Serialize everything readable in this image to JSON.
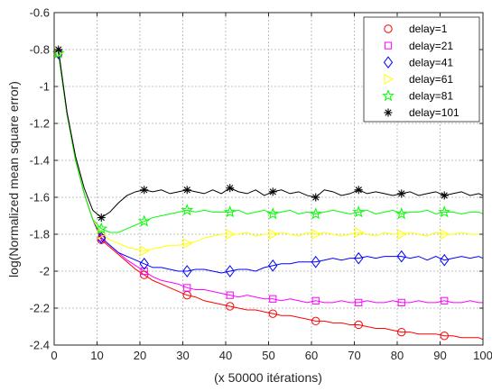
{
  "chart_data": {
    "type": "line",
    "title": "",
    "xlabel": "(x 50000 itérations)",
    "ylabel": "log(Normalized mean square error)",
    "xlim": [
      0,
      100
    ],
    "ylim": [
      -2.4,
      -0.6
    ],
    "xticks": [
      0,
      10,
      20,
      30,
      40,
      50,
      60,
      70,
      80,
      90,
      100
    ],
    "xtick_labels": [
      "0",
      "10",
      "20",
      "30",
      "40",
      "50",
      "60",
      "70",
      "80",
      "90",
      "100"
    ],
    "yticks": [
      -0.6,
      -0.8,
      -1,
      -1.2,
      -1.4,
      -1.6,
      -1.8,
      -2,
      -2.2,
      -2.4
    ],
    "ytick_labels": [
      "-0.6",
      "-0.8",
      "-1",
      "-1.2",
      "-1.4",
      "-1.6",
      "-1.8",
      "-2",
      "-2.2",
      "-2.4"
    ],
    "grid": true,
    "legend_position": "top-right",
    "series": [
      {
        "name": "delay=1",
        "color": "#ff0000",
        "marker": "circle",
        "x": [
          1,
          3,
          5,
          7,
          9,
          11,
          13,
          15,
          17,
          19,
          21,
          23,
          25,
          27,
          29,
          31,
          33,
          35,
          37,
          39,
          41,
          43,
          45,
          47,
          49,
          51,
          53,
          55,
          57,
          59,
          61,
          63,
          65,
          67,
          69,
          71,
          73,
          75,
          77,
          79,
          81,
          83,
          85,
          87,
          89,
          91,
          93,
          95,
          97,
          99,
          100
        ],
        "values": [
          -0.82,
          -1.15,
          -1.4,
          -1.58,
          -1.72,
          -1.83,
          -1.87,
          -1.91,
          -1.95,
          -1.99,
          -2.02,
          -2.05,
          -2.07,
          -2.09,
          -2.11,
          -2.13,
          -2.14,
          -2.16,
          -2.17,
          -2.18,
          -2.19,
          -2.2,
          -2.21,
          -2.21,
          -2.22,
          -2.23,
          -2.24,
          -2.24,
          -2.25,
          -2.26,
          -2.27,
          -2.27,
          -2.28,
          -2.28,
          -2.29,
          -2.29,
          -2.3,
          -2.31,
          -2.31,
          -2.32,
          -2.33,
          -2.33,
          -2.34,
          -2.34,
          -2.34,
          -2.35,
          -2.35,
          -2.36,
          -2.36,
          -2.36,
          -2.37
        ]
      },
      {
        "name": "delay=21",
        "color": "#ff00ff",
        "marker": "square",
        "x": [
          1,
          3,
          5,
          7,
          9,
          11,
          13,
          15,
          17,
          19,
          21,
          23,
          25,
          27,
          29,
          31,
          33,
          35,
          37,
          39,
          41,
          43,
          45,
          47,
          49,
          51,
          53,
          55,
          57,
          59,
          61,
          63,
          65,
          67,
          69,
          71,
          73,
          75,
          77,
          79,
          81,
          83,
          85,
          87,
          89,
          91,
          93,
          95,
          97,
          99,
          100
        ],
        "values": [
          -0.82,
          -1.15,
          -1.4,
          -1.58,
          -1.72,
          -1.82,
          -1.86,
          -1.9,
          -1.94,
          -1.97,
          -2.0,
          -2.03,
          -2.05,
          -2.06,
          -2.07,
          -2.09,
          -2.1,
          -2.1,
          -2.11,
          -2.12,
          -2.13,
          -2.14,
          -2.13,
          -2.14,
          -2.15,
          -2.15,
          -2.16,
          -2.15,
          -2.16,
          -2.17,
          -2.16,
          -2.17,
          -2.17,
          -2.16,
          -2.17,
          -2.17,
          -2.16,
          -2.17,
          -2.17,
          -2.16,
          -2.17,
          -2.17,
          -2.16,
          -2.17,
          -2.17,
          -2.16,
          -2.17,
          -2.17,
          -2.16,
          -2.17,
          -2.17
        ]
      },
      {
        "name": "delay=41",
        "color": "#0000ff",
        "marker": "diamond",
        "x": [
          1,
          3,
          5,
          7,
          9,
          11,
          13,
          15,
          17,
          19,
          21,
          23,
          25,
          27,
          29,
          31,
          33,
          35,
          37,
          39,
          41,
          43,
          45,
          47,
          49,
          51,
          53,
          55,
          57,
          59,
          61,
          63,
          65,
          67,
          69,
          71,
          73,
          75,
          77,
          79,
          81,
          83,
          85,
          87,
          89,
          91,
          93,
          95,
          97,
          99,
          100
        ],
        "values": [
          -0.82,
          -1.15,
          -1.4,
          -1.58,
          -1.72,
          -1.82,
          -1.86,
          -1.9,
          -1.92,
          -1.94,
          -1.96,
          -1.98,
          -1.98,
          -1.99,
          -2.0,
          -2.0,
          -1.99,
          -1.99,
          -2.0,
          -2.01,
          -2.0,
          -1.99,
          -1.99,
          -2.0,
          -1.98,
          -1.97,
          -1.96,
          -1.96,
          -1.95,
          -1.95,
          -1.95,
          -1.94,
          -1.93,
          -1.94,
          -1.93,
          -1.93,
          -1.92,
          -1.93,
          -1.92,
          -1.92,
          -1.92,
          -1.93,
          -1.92,
          -1.94,
          -1.92,
          -1.94,
          -1.93,
          -1.92,
          -1.93,
          -1.92,
          -1.93
        ]
      },
      {
        "name": "delay=61",
        "color": "#ffff00",
        "marker": "triangle-right",
        "x": [
          1,
          3,
          5,
          7,
          9,
          11,
          13,
          15,
          17,
          19,
          21,
          23,
          25,
          27,
          29,
          31,
          33,
          35,
          37,
          39,
          41,
          43,
          45,
          47,
          49,
          51,
          53,
          55,
          57,
          59,
          61,
          63,
          65,
          67,
          69,
          71,
          73,
          75,
          77,
          79,
          81,
          83,
          85,
          87,
          89,
          91,
          93,
          95,
          97,
          99,
          100
        ],
        "values": [
          -0.82,
          -1.15,
          -1.4,
          -1.58,
          -1.72,
          -1.8,
          -1.83,
          -1.85,
          -1.87,
          -1.88,
          -1.89,
          -1.88,
          -1.87,
          -1.86,
          -1.86,
          -1.85,
          -1.84,
          -1.82,
          -1.81,
          -1.8,
          -1.8,
          -1.8,
          -1.79,
          -1.81,
          -1.8,
          -1.8,
          -1.79,
          -1.8,
          -1.81,
          -1.79,
          -1.8,
          -1.79,
          -1.8,
          -1.81,
          -1.8,
          -1.79,
          -1.8,
          -1.81,
          -1.79,
          -1.8,
          -1.8,
          -1.79,
          -1.8,
          -1.81,
          -1.79,
          -1.8,
          -1.8,
          -1.79,
          -1.8,
          -1.8,
          -1.8
        ]
      },
      {
        "name": "delay=81",
        "color": "#00ff00",
        "marker": "pentagram",
        "x": [
          1,
          3,
          5,
          7,
          9,
          11,
          13,
          15,
          17,
          19,
          21,
          23,
          25,
          27,
          29,
          31,
          33,
          35,
          37,
          39,
          41,
          43,
          45,
          47,
          49,
          51,
          53,
          55,
          57,
          59,
          61,
          63,
          65,
          67,
          69,
          71,
          73,
          75,
          77,
          79,
          81,
          83,
          85,
          87,
          89,
          91,
          93,
          95,
          97,
          99,
          100
        ],
        "values": [
          -0.82,
          -1.15,
          -1.4,
          -1.58,
          -1.72,
          -1.77,
          -1.79,
          -1.79,
          -1.77,
          -1.75,
          -1.73,
          -1.71,
          -1.7,
          -1.69,
          -1.68,
          -1.67,
          -1.68,
          -1.67,
          -1.68,
          -1.68,
          -1.68,
          -1.67,
          -1.69,
          -1.68,
          -1.67,
          -1.69,
          -1.68,
          -1.67,
          -1.69,
          -1.68,
          -1.69,
          -1.68,
          -1.67,
          -1.68,
          -1.69,
          -1.68,
          -1.67,
          -1.69,
          -1.68,
          -1.67,
          -1.69,
          -1.68,
          -1.68,
          -1.67,
          -1.69,
          -1.68,
          -1.68,
          -1.69,
          -1.68,
          -1.68,
          -1.69
        ]
      },
      {
        "name": "delay=101",
        "color": "#000000",
        "marker": "asterisk",
        "x": [
          1,
          3,
          5,
          7,
          9,
          11,
          13,
          15,
          17,
          19,
          21,
          23,
          25,
          27,
          29,
          31,
          33,
          35,
          37,
          39,
          41,
          43,
          45,
          47,
          49,
          51,
          53,
          55,
          57,
          59,
          61,
          63,
          65,
          67,
          69,
          71,
          73,
          75,
          77,
          79,
          81,
          83,
          85,
          87,
          89,
          91,
          93,
          95,
          97,
          99,
          100
        ],
        "values": [
          -0.8,
          -1.14,
          -1.38,
          -1.55,
          -1.67,
          -1.71,
          -1.68,
          -1.63,
          -1.59,
          -1.57,
          -1.56,
          -1.57,
          -1.56,
          -1.58,
          -1.57,
          -1.56,
          -1.57,
          -1.58,
          -1.56,
          -1.58,
          -1.55,
          -1.57,
          -1.58,
          -1.56,
          -1.59,
          -1.57,
          -1.56,
          -1.58,
          -1.57,
          -1.59,
          -1.6,
          -1.56,
          -1.57,
          -1.59,
          -1.58,
          -1.56,
          -1.58,
          -1.57,
          -1.58,
          -1.59,
          -1.58,
          -1.57,
          -1.59,
          -1.58,
          -1.57,
          -1.59,
          -1.58,
          -1.57,
          -1.59,
          -1.58,
          -1.59
        ]
      }
    ]
  }
}
